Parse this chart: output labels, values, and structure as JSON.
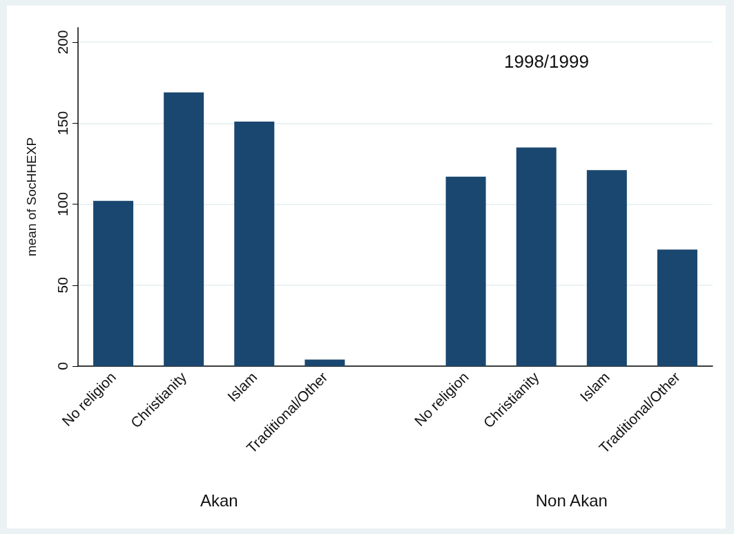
{
  "chart_data": {
    "type": "bar",
    "categories": [
      "No religion",
      "Christianity",
      "Islam",
      "Traditional/Other",
      null,
      "No religion",
      "Christianity",
      "Islam",
      "Traditional/Other"
    ],
    "values": [
      102,
      169,
      151,
      4,
      null,
      117,
      135,
      121,
      72
    ],
    "color": "#1a476f",
    "ylabel": "mean of SocHHEXP",
    "ylim": [
      0,
      209
    ],
    "yticks": [
      0,
      50,
      100,
      150,
      200
    ],
    "grid": "y",
    "annotations": [
      "1998/1999",
      "Akan",
      "Non Akan"
    ]
  }
}
